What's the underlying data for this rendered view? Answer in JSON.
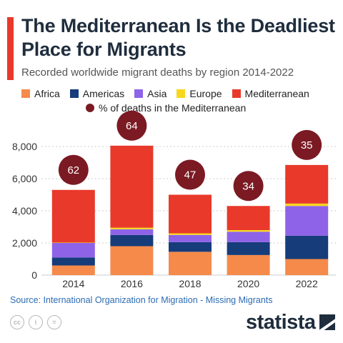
{
  "header": {
    "title": "The Mediterranean Is the Deadliest Place for Migrants",
    "subtitle": "Recorded worldwide migrant deaths by region 2014-2022"
  },
  "legend": {
    "items": [
      {
        "label": "Africa",
        "color": "#f58a4b"
      },
      {
        "label": "Americas",
        "color": "#163c7a"
      },
      {
        "label": "Asia",
        "color": "#8f63e8"
      },
      {
        "label": "Europe",
        "color": "#f7d71e"
      },
      {
        "label": "Mediterranean",
        "color": "#e8392a"
      }
    ],
    "pct_label": "% of deaths in the Mediterranean",
    "pct_color": "#7b1a23"
  },
  "chart_data": {
    "type": "bar",
    "stacked": true,
    "categories": [
      "2014",
      "2016",
      "2018",
      "2020",
      "2022"
    ],
    "series": [
      {
        "name": "Africa",
        "color": "#f58a4b",
        "values": [
          600,
          1800,
          1450,
          1250,
          1000
        ]
      },
      {
        "name": "Americas",
        "color": "#163c7a",
        "values": [
          500,
          700,
          600,
          800,
          1450
        ]
      },
      {
        "name": "Asia",
        "color": "#8f63e8",
        "values": [
          900,
          350,
          450,
          650,
          1850
        ]
      },
      {
        "name": "Europe",
        "color": "#f7d71e",
        "values": [
          25,
          100,
          100,
          100,
          150
        ]
      },
      {
        "name": "Mediterranean",
        "color": "#e8392a",
        "values": [
          3275,
          5100,
          2400,
          1500,
          2400
        ]
      }
    ],
    "annotations": {
      "name": "% of deaths in the Mediterranean",
      "values": [
        62,
        64,
        47,
        34,
        35
      ]
    },
    "ylim": [
      0,
      8000
    ],
    "yticks": [
      0,
      2000,
      4000,
      6000,
      8000
    ],
    "ytick_labels": [
      "0",
      "2,000",
      "4,000",
      "6,000",
      "8,000"
    ],
    "grid": true
  },
  "footer": {
    "source": "Source: International Organization for Migration - Missing Migrants",
    "license_icons": [
      "cc",
      "i",
      "="
    ],
    "brand": "statista"
  }
}
